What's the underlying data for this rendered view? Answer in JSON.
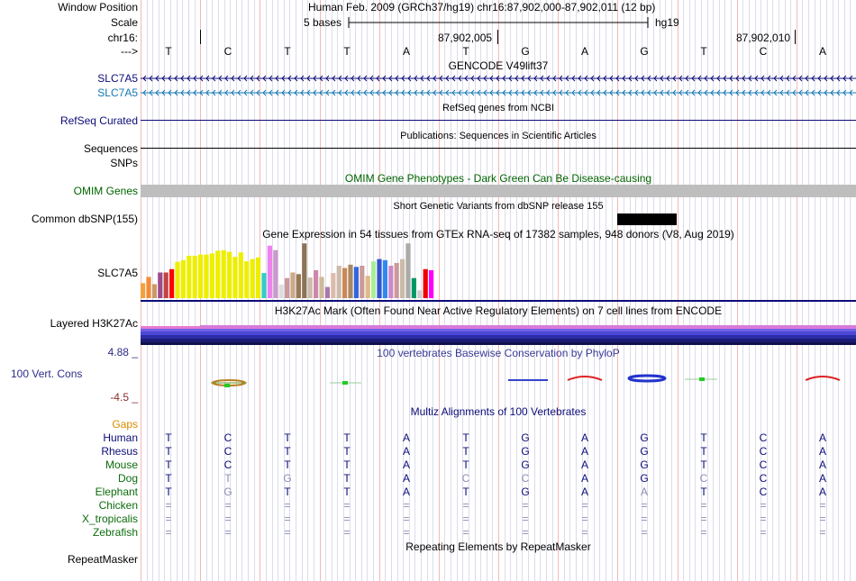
{
  "header": {
    "window_position_label": "Window Position",
    "window_position_value": "Human Feb. 2009 (GRCh37/hg19)   chr16:87,902,000-87,902,011 (12 bp)",
    "scale_label": "Scale",
    "scale_bases": "5 bases",
    "scale_assembly": "hg19",
    "chr_label": "chr16:",
    "strand_label": "--->",
    "coord_1": "87,902,005",
    "coord_2": "87,902,010"
  },
  "sequence": [
    "T",
    "C",
    "T",
    "T",
    "A",
    "T",
    "G",
    "A",
    "G",
    "T",
    "C",
    "A"
  ],
  "tracks": {
    "gencode_title": "GENCODE V49lift37",
    "gencode_1": "SLC7A5",
    "gencode_2": "SLC7A5",
    "refseq_title": "RefSeq genes from NCBI",
    "refseq_label": "RefSeq Curated",
    "pubs_title": "Publications: Sequences in Scientific Articles",
    "sequences_label": "Sequences",
    "snps_label": "SNPs",
    "omim_title": "OMIM Gene Phenotypes - Dark Green Can Be Disease-causing",
    "omim_label": "OMIM Genes",
    "dbsnp_title": "Short Genetic Variants from dbSNP release 155",
    "dbsnp_label": "Common dbSNP(155)",
    "gtex_title": "Gene Expression in 54 tissues from GTEx RNA-seq of 17382 samples, 948 donors (V8, Aug 2019)",
    "gtex_label": "SLC7A5",
    "h3k27ac_title": "H3K27Ac Mark (Often Found Near Active Regulatory Elements) on 7 cell lines from ENCODE",
    "h3k27ac_label": "Layered H3K27Ac",
    "phylop_max": "4.88 _",
    "phylop_title": "100 vertebrates Basewise Conservation by PhyloP",
    "phylop_label": "100 Vert. Cons",
    "phylop_min": "-4.5 _",
    "multiz_title": "Multiz Alignments of 100 Vertebrates",
    "gaps_label": "Gaps",
    "repeat_title": "Repeating Elements by RepeatMasker",
    "repeat_label": "RepeatMasker"
  },
  "species": [
    {
      "name": "Human",
      "bases": [
        "T",
        "C",
        "T",
        "T",
        "A",
        "T",
        "G",
        "A",
        "G",
        "T",
        "C",
        "A"
      ],
      "dim": []
    },
    {
      "name": "Rhesus",
      "bases": [
        "T",
        "C",
        "T",
        "T",
        "A",
        "T",
        "G",
        "A",
        "G",
        "T",
        "C",
        "A"
      ],
      "dim": []
    },
    {
      "name": "Mouse",
      "bases": [
        "T",
        "C",
        "T",
        "T",
        "A",
        "T",
        "G",
        "A",
        "G",
        "T",
        "C",
        "A"
      ],
      "dim": []
    },
    {
      "name": "Dog",
      "bases": [
        "T",
        "T",
        "G",
        "T",
        "A",
        "C",
        "C",
        "A",
        "G",
        "C",
        "C",
        "A"
      ],
      "dim": [
        1,
        2,
        5,
        6,
        9
      ]
    },
    {
      "name": "Elephant",
      "bases": [
        "T",
        "G",
        "T",
        "T",
        "A",
        "T",
        "G",
        "A",
        "A",
        "T",
        "C",
        "A"
      ],
      "dim": [
        1,
        8
      ]
    },
    {
      "name": "Chicken",
      "bases": [
        "=",
        "=",
        "=",
        "=",
        "=",
        "=",
        "=",
        "=",
        "=",
        "=",
        "=",
        "="
      ],
      "dim": [
        0,
        1,
        2,
        3,
        4,
        5,
        6,
        7,
        8,
        9,
        10,
        11
      ]
    },
    {
      "name": "X_tropicalis",
      "bases": [
        "=",
        "=",
        "=",
        "=",
        "=",
        "=",
        "=",
        "=",
        "=",
        "=",
        "=",
        "="
      ],
      "dim": [
        0,
        1,
        2,
        3,
        4,
        5,
        6,
        7,
        8,
        9,
        10,
        11
      ]
    },
    {
      "name": "Zebrafish",
      "bases": [
        "=",
        "=",
        "=",
        "=",
        "=",
        "=",
        "=",
        "=",
        "=",
        "=",
        "=",
        "="
      ],
      "dim": [
        0,
        1,
        2,
        3,
        4,
        5,
        6,
        7,
        8,
        9,
        10,
        11
      ]
    }
  ],
  "gtex_bars": [
    {
      "v": 0.27,
      "c": "#f4a040"
    },
    {
      "v": 0.38,
      "c": "#f08c3c"
    },
    {
      "v": 0.25,
      "c": "#cc9966"
    },
    {
      "v": 0.46,
      "c": "#9b4b8c"
    },
    {
      "v": 0.46,
      "c": "#c04444"
    },
    {
      "v": 0.52,
      "c": "#ff0000"
    },
    {
      "v": 0.65,
      "c": "#eeee00"
    },
    {
      "v": 0.68,
      "c": "#eeee00"
    },
    {
      "v": 0.76,
      "c": "#eeee00"
    },
    {
      "v": 0.76,
      "c": "#eeee00"
    },
    {
      "v": 0.78,
      "c": "#eeee00"
    },
    {
      "v": 0.78,
      "c": "#eeee00"
    },
    {
      "v": 0.8,
      "c": "#eeee00"
    },
    {
      "v": 0.85,
      "c": "#eeee00"
    },
    {
      "v": 0.86,
      "c": "#eeee00"
    },
    {
      "v": 0.83,
      "c": "#eeee00"
    },
    {
      "v": 0.74,
      "c": "#eeee00"
    },
    {
      "v": 0.82,
      "c": "#eeee00"
    },
    {
      "v": 0.66,
      "c": "#eeee00"
    },
    {
      "v": 0.7,
      "c": "#eeee00"
    },
    {
      "v": 0.73,
      "c": "#eeee00"
    },
    {
      "v": 0.45,
      "c": "#33cccc"
    },
    {
      "v": 0.94,
      "c": "#ee82ee"
    },
    {
      "v": 0.86,
      "c": "#cc99cc"
    },
    {
      "v": 0.24,
      "c": "#dddddd"
    },
    {
      "v": 0.36,
      "c": "#cc9999"
    },
    {
      "v": 0.46,
      "c": "#ccaa88"
    },
    {
      "v": 0.43,
      "c": "#997755"
    },
    {
      "v": 0.98,
      "c": "#8b7355"
    },
    {
      "v": 0.37,
      "c": "#ccbbaa"
    },
    {
      "v": 0.5,
      "c": "#cc88aa"
    },
    {
      "v": 0.38,
      "c": "#ccbb99"
    },
    {
      "v": 0.2,
      "c": "#aa77aa"
    },
    {
      "v": 0.45,
      "c": "#ddbbaa"
    },
    {
      "v": 0.58,
      "c": "#ccbbaa"
    },
    {
      "v": 0.54,
      "c": "#cc8855"
    },
    {
      "v": 0.6,
      "c": "#aa8866"
    },
    {
      "v": 0.56,
      "c": "#3366dd"
    },
    {
      "v": 0.58,
      "c": "#cc9999"
    },
    {
      "v": 0.4,
      "c": "#ddbb88"
    },
    {
      "v": 0.66,
      "c": "#aaee99"
    },
    {
      "v": 0.7,
      "c": "#3355cc"
    },
    {
      "v": 0.68,
      "c": "#3388ee"
    },
    {
      "v": 0.58,
      "c": "#cc88cc"
    },
    {
      "v": 0.63,
      "c": "#cc9999"
    },
    {
      "v": 0.7,
      "c": "#ccbbaa"
    },
    {
      "v": 0.98,
      "c": "#aaaaaa"
    },
    {
      "v": 0.36,
      "c": "#009966"
    },
    {
      "v": 0.14,
      "c": "#cccccc"
    },
    {
      "v": 0.52,
      "c": "#ee0000"
    },
    {
      "v": 0.5,
      "c": "#ff00ff"
    }
  ]
}
